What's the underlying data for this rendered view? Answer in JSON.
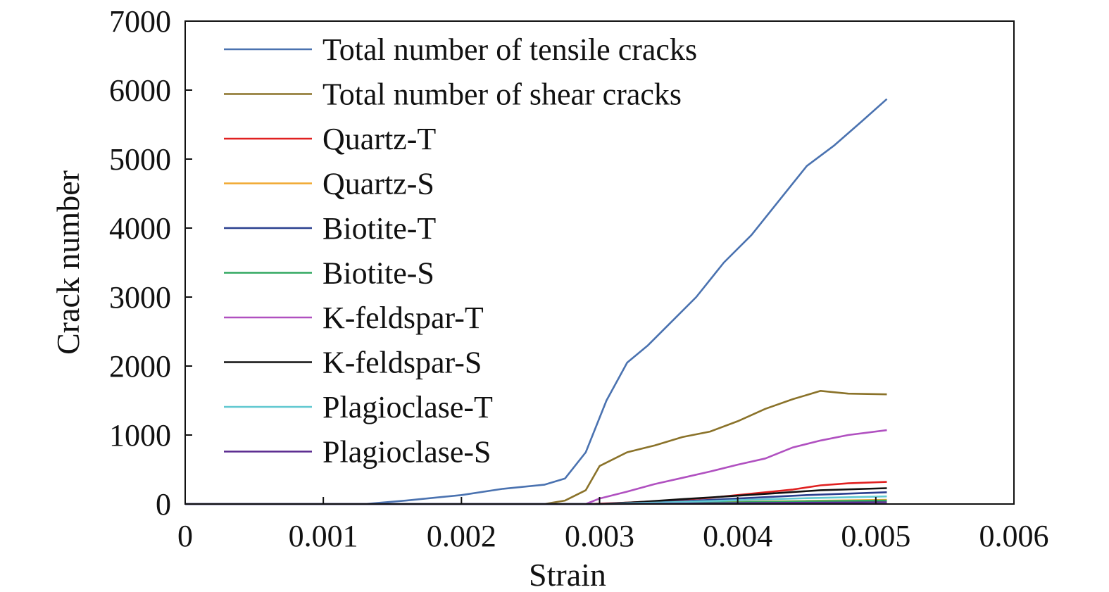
{
  "chart_data": {
    "type": "line",
    "title": "",
    "xlabel": "Strain",
    "ylabel": "Crack number",
    "xlim": [
      0,
      0.006
    ],
    "ylim": [
      0,
      7000
    ],
    "x_ticks": [
      "0",
      "0.001",
      "0.002",
      "0.003",
      "0.004",
      "0.005",
      "0.006"
    ],
    "y_ticks": [
      "0",
      "1000",
      "2000",
      "3000",
      "4000",
      "5000",
      "6000",
      "7000"
    ],
    "grid": false,
    "legend_position": "top-left",
    "series": [
      {
        "name": "Total number of tensile cracks",
        "color": "#4a72b0",
        "x": [
          0,
          0.0013,
          0.0016,
          0.002,
          0.0023,
          0.0026,
          0.00275,
          0.0029,
          0.00305,
          0.0032,
          0.00335,
          0.0035,
          0.0037,
          0.0039,
          0.0041,
          0.0043,
          0.0045,
          0.0047,
          0.0049,
          0.00508
        ],
        "y": [
          0,
          0,
          50,
          130,
          220,
          280,
          370,
          750,
          1500,
          2050,
          2300,
          2600,
          3000,
          3500,
          3900,
          4400,
          4900,
          5200,
          5550,
          5870
        ]
      },
      {
        "name": "Total number of shear cracks",
        "color": "#8a7229",
        "x": [
          0,
          0.0026,
          0.00275,
          0.0029,
          0.003,
          0.0032,
          0.0034,
          0.0036,
          0.0038,
          0.004,
          0.0042,
          0.0044,
          0.0046,
          0.0048,
          0.00508
        ],
        "y": [
          0,
          0,
          50,
          200,
          550,
          750,
          850,
          970,
          1050,
          1200,
          1380,
          1520,
          1640,
          1600,
          1590
        ]
      },
      {
        "name": "Quartz-T",
        "color": "#e02020",
        "x": [
          0,
          0.0029,
          0.0032,
          0.0035,
          0.0038,
          0.0041,
          0.0044,
          0.0046,
          0.0048,
          0.00508
        ],
        "y": [
          0,
          0,
          20,
          50,
          90,
          150,
          210,
          270,
          300,
          320
        ]
      },
      {
        "name": "Quartz-S",
        "color": "#f0a830",
        "x": [
          0,
          0.003,
          0.0035,
          0.004,
          0.0045,
          0.00508
        ],
        "y": [
          0,
          0,
          15,
          30,
          45,
          60
        ]
      },
      {
        "name": "Biotite-T",
        "color": "#2a3f8f",
        "x": [
          0,
          0.003,
          0.0035,
          0.004,
          0.0045,
          0.00508
        ],
        "y": [
          0,
          0,
          30,
          80,
          130,
          170
        ]
      },
      {
        "name": "Biotite-S",
        "color": "#30a860",
        "x": [
          0,
          0.003,
          0.0035,
          0.004,
          0.0045,
          0.00508
        ],
        "y": [
          0,
          0,
          10,
          25,
          40,
          50
        ]
      },
      {
        "name": "K-feldspar-T",
        "color": "#b050c0",
        "x": [
          0,
          0.0029,
          0.003,
          0.0032,
          0.0034,
          0.0036,
          0.0038,
          0.004,
          0.0042,
          0.0044,
          0.0046,
          0.0048,
          0.00508
        ],
        "y": [
          0,
          0,
          80,
          180,
          290,
          380,
          470,
          570,
          660,
          820,
          920,
          1000,
          1070
        ]
      },
      {
        "name": "K-feldspar-S",
        "color": "#111111",
        "x": [
          0,
          0.003,
          0.0033,
          0.0036,
          0.004,
          0.0043,
          0.0046,
          0.00508
        ],
        "y": [
          0,
          0,
          30,
          70,
          120,
          160,
          200,
          230
        ]
      },
      {
        "name": "Plagioclase-T",
        "color": "#60c8d0",
        "x": [
          0,
          0.003,
          0.0035,
          0.004,
          0.0045,
          0.00508
        ],
        "y": [
          0,
          0,
          25,
          55,
          85,
          110
        ]
      },
      {
        "name": "Plagioclase-S",
        "color": "#5a2a8f",
        "x": [
          0,
          0.003,
          0.0035,
          0.004,
          0.0045,
          0.00508
        ],
        "y": [
          0,
          0,
          5,
          12,
          18,
          25
        ]
      }
    ]
  }
}
